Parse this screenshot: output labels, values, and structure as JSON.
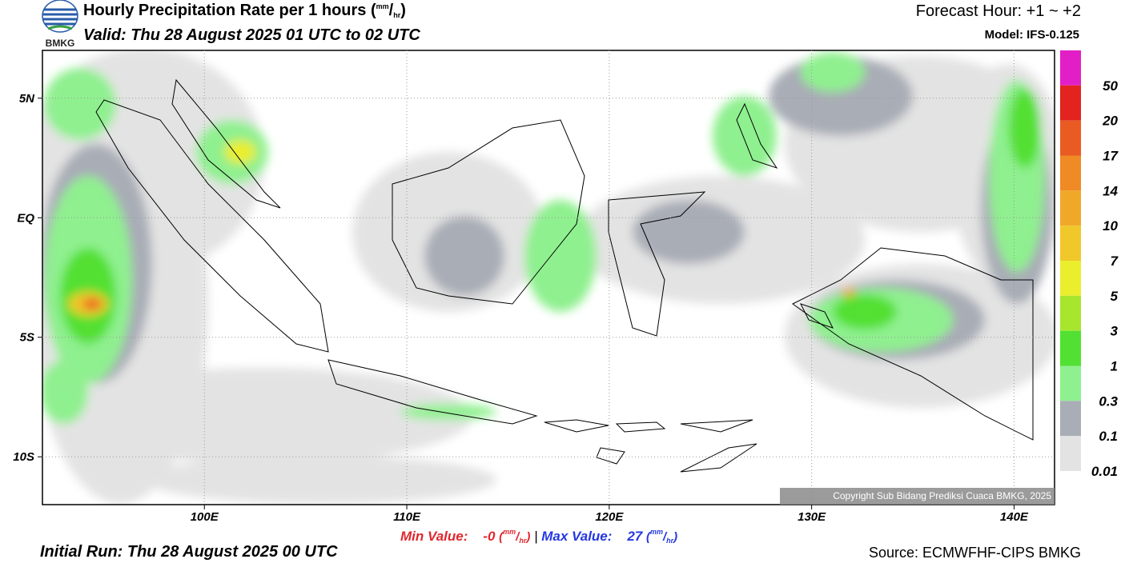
{
  "header": {
    "logo_text": "BMKG",
    "title": "Hourly Precipitation Rate per 1 hours",
    "unit": [
      "(",
      "mm",
      "/",
      "hr",
      ")"
    ],
    "valid": "Valid: Thu 28 August 2025 01 UTC to 02 UTC",
    "forecast_hour": "Forecast Hour: +1 ~ +2",
    "model": "Model: IFS-0.125"
  },
  "map": {
    "xlim": [
      92,
      142
    ],
    "ylim": [
      -12,
      7
    ],
    "xticks": [
      {
        "value": 100,
        "label": "100E"
      },
      {
        "value": 110,
        "label": "110E"
      },
      {
        "value": 120,
        "label": "120E"
      },
      {
        "value": 130,
        "label": "130E"
      },
      {
        "value": 140,
        "label": "140E"
      }
    ],
    "yticks": [
      {
        "value": 5,
        "label": "5N"
      },
      {
        "value": 0,
        "label": "EQ"
      },
      {
        "value": -5,
        "label": "5S"
      },
      {
        "value": -10,
        "label": "10S"
      }
    ],
    "grid": true,
    "copyright": "Copyright Sub Bidang Prediksi Cuaca BMKG, 2025"
  },
  "colorbar": {
    "levels": [
      50,
      20,
      17,
      14,
      10,
      7,
      5,
      3,
      1,
      0.3,
      0.1,
      0.01
    ],
    "colors": [
      "#e21fc6",
      "#e2231f",
      "#ea5a23",
      "#ef8a25",
      "#f0a828",
      "#f0c82a",
      "#eaee2c",
      "#a8e62e",
      "#52e032",
      "#8ff08f",
      "#a9adb6",
      "#e3e3e3"
    ]
  },
  "footer": {
    "min_label": "Min Value:",
    "min_value": "-0",
    "separator": "|",
    "max_label": "Max Value:",
    "max_value": 27,
    "initial_run": "Initial Run: Thu 28 August 2025 00 UTC",
    "source": "Source: ECMWFHF-CIPS BMKG"
  }
}
